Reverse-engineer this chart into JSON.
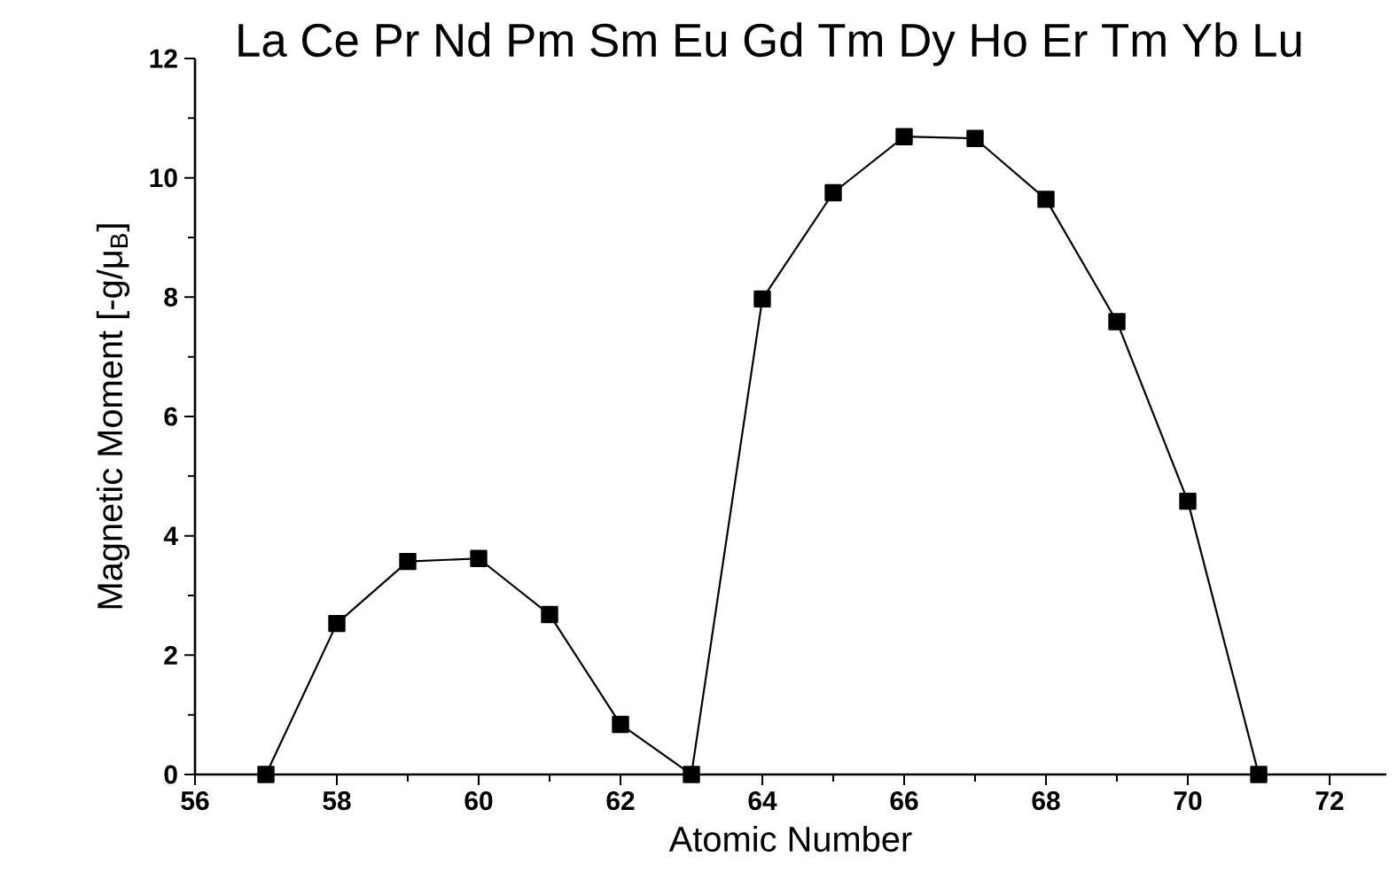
{
  "chart_data": {
    "type": "line",
    "title": "La Ce Pr Nd Pm Sm Eu Gd Tm Dy Ho Er Tm Yb Lu",
    "xlabel": "Atomic Number",
    "ylabel": "Magnetic Moment [-g/μ$_{B}$]",
    "x": [
      57,
      58,
      59,
      60,
      61,
      62,
      63,
      64,
      65,
      66,
      67,
      68,
      69,
      70,
      71
    ],
    "series": [
      {
        "color": "#000000",
        "values": [
          0,
          2.53,
          3.57,
          3.62,
          2.68,
          0.84,
          0,
          7.97,
          9.75,
          10.69,
          10.66,
          9.64,
          7.59,
          4.58,
          0
        ]
      }
    ],
    "xlim": [
      56,
      72.8
    ],
    "ylim": [
      0,
      12
    ],
    "xticks": [
      56,
      58,
      60,
      62,
      64,
      66,
      68,
      70,
      72
    ],
    "yticks": [
      0,
      2,
      4,
      6,
      8,
      10,
      12
    ],
    "grid": false,
    "marker": "square",
    "line_style": "solid"
  }
}
